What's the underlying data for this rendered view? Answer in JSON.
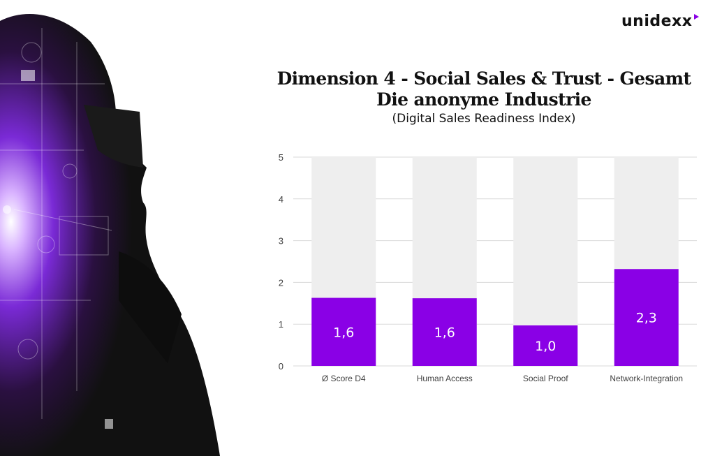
{
  "brand": {
    "logo_text": "unidexx",
    "accent_color": "#8a00e6"
  },
  "header": {
    "title_line1": "Dimension 4 - Social Sales & Trust - Gesamt",
    "title_line2": "Die anonyme Industrie",
    "subtitle": "(Digital Sales Readiness Index)"
  },
  "colors": {
    "bar": "#8a00e6",
    "track": "#eeeeee",
    "grid": "#d9d9d9",
    "label": "#ffffff",
    "axis_text": "#404040"
  },
  "chart_data": {
    "type": "bar",
    "categories": [
      "Ø Score D4",
      "Human Access",
      "Social Proof",
      "Network-Integration"
    ],
    "values": [
      1.63,
      1.62,
      0.97,
      2.32
    ],
    "value_labels": [
      "1,6",
      "1,6",
      "1,0",
      "2,3"
    ],
    "y_ticks": [
      "0",
      "1",
      "2",
      "3",
      "4",
      "5"
    ],
    "ylim": [
      0,
      5
    ],
    "max_track": 5,
    "grid": true,
    "title": "Dimension 4 - Social Sales & Trust - Gesamt"
  }
}
